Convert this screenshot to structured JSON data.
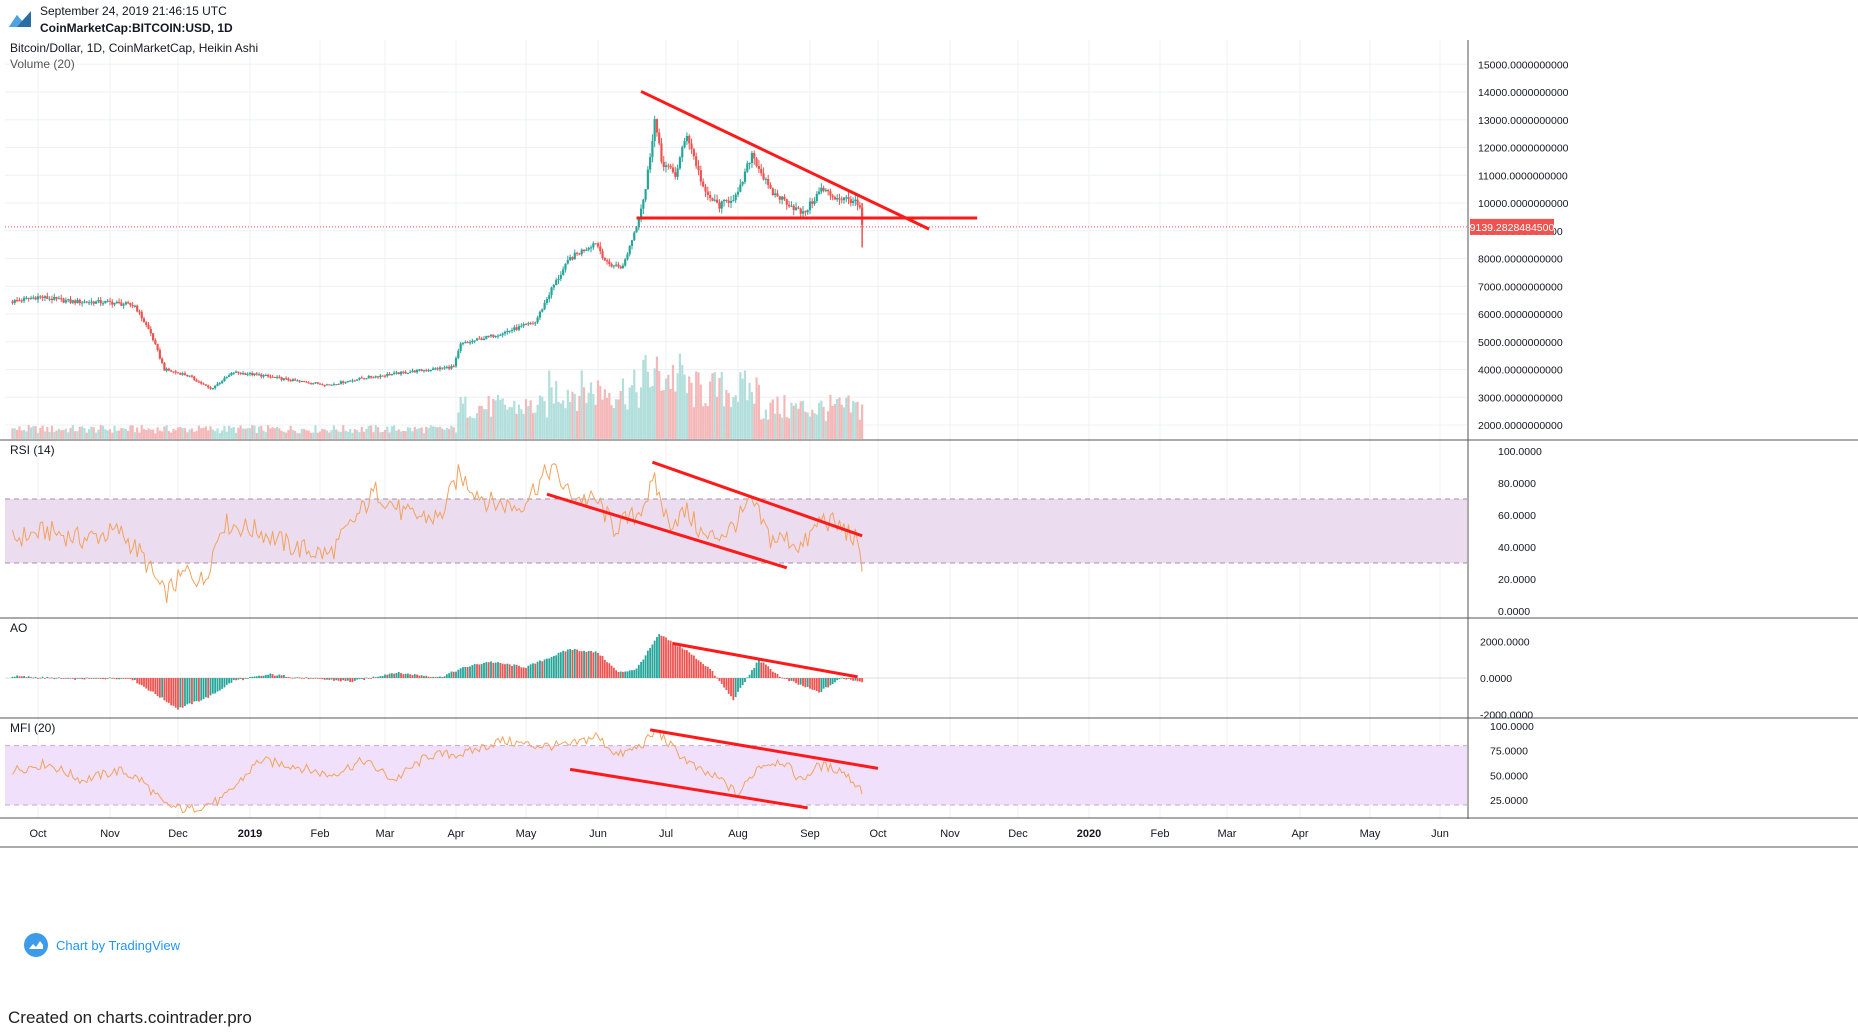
{
  "header": {
    "date": "September 24, 2019 21:46:15 UTC",
    "symbol": "CoinMarketCap:BITCOIN:USD, 1D"
  },
  "colors": {
    "up": "#26a69a",
    "down": "#ef5350",
    "vol_up": "#b2dfdb",
    "vol_down": "#f4b8b9",
    "osc_line": "#f2a35e",
    "trend": "#ff1a1a",
    "band_rsi": "#ecdcf0",
    "band_mfi": "#f1e0fb",
    "grid": "#eef0f3"
  },
  "main_pane": {
    "title": "Bitcoin/Dollar, 1D, CoinMarketCap, Heikin Ashi",
    "volume_label": "Volume (20)",
    "last_price": "9139.2828484500",
    "last_price_value": 9139.28,
    "y_ticks": [
      "15000.0000000000",
      "14000.0000000000",
      "13000.0000000000",
      "12000.0000000000",
      "11000.0000000000",
      "10000.0000000000",
      "9000.0000000000",
      "8000.0000000000",
      "7000.0000000000",
      "6000.0000000000",
      "5000.0000000000",
      "4000.0000000000",
      "3000.0000000000",
      "2000.0000000000"
    ]
  },
  "rsi_pane": {
    "title": "RSI (14)",
    "y_ticks": [
      "100.0000",
      "80.0000",
      "60.0000",
      "40.0000",
      "20.0000",
      "0.0000"
    ],
    "band": [
      30,
      70
    ]
  },
  "ao_pane": {
    "title": "AO",
    "y_ticks": [
      "2000.0000",
      "0.0000",
      "-2000.0000"
    ]
  },
  "mfi_pane": {
    "title": "MFI (20)",
    "y_ticks": [
      "100.0000",
      "75.0000",
      "50.0000",
      "25.0000"
    ],
    "band": [
      20,
      80
    ]
  },
  "x_axis": [
    "Oct",
    "Nov",
    "Dec",
    "2019",
    "Feb",
    "Mar",
    "Apr",
    "May",
    "Jun",
    "Jul",
    "Aug",
    "Sep",
    "Oct",
    "Nov",
    "Dec",
    "2020",
    "Feb",
    "Mar",
    "Apr",
    "May",
    "Jun"
  ],
  "chart_data": [
    {
      "type": "candlestick",
      "title": "Bitcoin/Dollar, 1D, CoinMarketCap, Heikin Ashi",
      "x_range": [
        "2018-09-20",
        "2020-06-20"
      ],
      "ylim": [
        1500,
        15800
      ],
      "close_path": [
        [
          "2018-09-20",
          6450
        ],
        [
          "2018-10-01",
          6620
        ],
        [
          "2018-10-15",
          6450
        ],
        [
          "2018-11-01",
          6420
        ],
        [
          "2018-11-12",
          6300
        ],
        [
          "2018-11-19",
          5300
        ],
        [
          "2018-11-25",
          4000
        ],
        [
          "2018-12-05",
          3800
        ],
        [
          "2018-12-15",
          3300
        ],
        [
          "2018-12-25",
          3900
        ],
        [
          "2019-01-05",
          3800
        ],
        [
          "2019-01-20",
          3600
        ],
        [
          "2019-02-05",
          3450
        ],
        [
          "2019-02-20",
          3700
        ],
        [
          "2019-03-10",
          3900
        ],
        [
          "2019-03-31",
          4100
        ],
        [
          "2019-04-03",
          4900
        ],
        [
          "2019-04-20",
          5300
        ],
        [
          "2019-05-05",
          5700
        ],
        [
          "2019-05-12",
          6900
        ],
        [
          "2019-05-20",
          8000
        ],
        [
          "2019-05-31",
          8600
        ],
        [
          "2019-06-05",
          7800
        ],
        [
          "2019-06-12",
          7700
        ],
        [
          "2019-06-18",
          9200
        ],
        [
          "2019-06-22",
          10500
        ],
        [
          "2019-06-26",
          13000
        ],
        [
          "2019-06-29",
          11500
        ],
        [
          "2019-07-05",
          11000
        ],
        [
          "2019-07-10",
          12500
        ],
        [
          "2019-07-18",
          10300
        ],
        [
          "2019-07-24",
          9900
        ],
        [
          "2019-08-01",
          10300
        ],
        [
          "2019-08-07",
          11800
        ],
        [
          "2019-08-15",
          10400
        ],
        [
          "2019-08-21",
          10100
        ],
        [
          "2019-08-29",
          9600
        ],
        [
          "2019-09-06",
          10500
        ],
        [
          "2019-09-12",
          10200
        ],
        [
          "2019-09-20",
          10100
        ],
        [
          "2019-09-23",
          9800
        ],
        [
          "2019-09-24",
          9139
        ]
      ],
      "volume_range": [
        1500,
        5000
      ]
    },
    {
      "type": "line",
      "title": "RSI (14)",
      "ylim": [
        0,
        100
      ],
      "points": [
        [
          "2018-09-20",
          45
        ],
        [
          "2018-10-05",
          50
        ],
        [
          "2018-10-20",
          45
        ],
        [
          "2018-11-05",
          50
        ],
        [
          "2018-11-15",
          35
        ],
        [
          "2018-11-25",
          10
        ],
        [
          "2018-12-05",
          25
        ],
        [
          "2018-12-12",
          18
        ],
        [
          "2018-12-20",
          55
        ],
        [
          "2019-01-05",
          50
        ],
        [
          "2019-01-20",
          40
        ],
        [
          "2019-02-05",
          35
        ],
        [
          "2019-02-15",
          55
        ],
        [
          "2019-02-25",
          75
        ],
        [
          "2019-03-10",
          60
        ],
        [
          "2019-03-25",
          58
        ],
        [
          "2019-04-02",
          85
        ],
        [
          "2019-04-15",
          68
        ],
        [
          "2019-04-28",
          65
        ],
        [
          "2019-05-12",
          90
        ],
        [
          "2019-05-20",
          72
        ],
        [
          "2019-06-01",
          68
        ],
        [
          "2019-06-08",
          52
        ],
        [
          "2019-06-18",
          60
        ],
        [
          "2019-06-26",
          80
        ],
        [
          "2019-07-02",
          55
        ],
        [
          "2019-07-10",
          62
        ],
        [
          "2019-07-18",
          45
        ],
        [
          "2019-07-28",
          50
        ],
        [
          "2019-08-07",
          68
        ],
        [
          "2019-08-15",
          45
        ],
        [
          "2019-08-22",
          45
        ],
        [
          "2019-08-29",
          40
        ],
        [
          "2019-09-06",
          58
        ],
        [
          "2019-09-15",
          52
        ],
        [
          "2019-09-21",
          45
        ],
        [
          "2019-09-24",
          25
        ]
      ]
    },
    {
      "type": "bar",
      "title": "AO",
      "ylim": [
        -2300,
        2700
      ],
      "points": [
        [
          "2018-09-20",
          100
        ],
        [
          "2018-10-15",
          -50
        ],
        [
          "2018-11-10",
          0
        ],
        [
          "2018-11-20",
          -800
        ],
        [
          "2018-12-01",
          -1700
        ],
        [
          "2018-12-15",
          -1000
        ],
        [
          "2018-12-25",
          -150
        ],
        [
          "2019-01-10",
          200
        ],
        [
          "2019-01-25",
          0
        ],
        [
          "2019-02-15",
          -200
        ],
        [
          "2019-03-05",
          300
        ],
        [
          "2019-03-25",
          50
        ],
        [
          "2019-04-05",
          600
        ],
        [
          "2019-04-15",
          900
        ],
        [
          "2019-05-01",
          600
        ],
        [
          "2019-05-20",
          1600
        ],
        [
          "2019-06-01",
          1400
        ],
        [
          "2019-06-10",
          300
        ],
        [
          "2019-06-18",
          500
        ],
        [
          "2019-06-28",
          2400
        ],
        [
          "2019-07-10",
          1500
        ],
        [
          "2019-07-20",
          500
        ],
        [
          "2019-07-30",
          -1200
        ],
        [
          "2019-08-10",
          1000
        ],
        [
          "2019-08-20",
          0
        ],
        [
          "2019-09-05",
          -800
        ],
        [
          "2019-09-15",
          0
        ],
        [
          "2019-09-24",
          -200
        ]
      ]
    },
    {
      "type": "line",
      "title": "MFI (20)",
      "ylim": [
        10,
        105
      ],
      "points": [
        [
          "2018-09-20",
          55
        ],
        [
          "2018-10-05",
          62
        ],
        [
          "2018-10-20",
          45
        ],
        [
          "2018-11-05",
          55
        ],
        [
          "2018-11-15",
          45
        ],
        [
          "2018-11-25",
          20
        ],
        [
          "2018-12-05",
          15
        ],
        [
          "2018-12-20",
          25
        ],
        [
          "2019-01-05",
          65
        ],
        [
          "2019-01-20",
          60
        ],
        [
          "2019-02-05",
          50
        ],
        [
          "2019-02-20",
          65
        ],
        [
          "2019-03-05",
          45
        ],
        [
          "2019-03-20",
          70
        ],
        [
          "2019-04-05",
          72
        ],
        [
          "2019-04-20",
          85
        ],
        [
          "2019-05-05",
          80
        ],
        [
          "2019-05-20",
          80
        ],
        [
          "2019-05-31",
          90
        ],
        [
          "2019-06-10",
          70
        ],
        [
          "2019-06-20",
          80
        ],
        [
          "2019-06-27",
          95
        ],
        [
          "2019-07-05",
          75
        ],
        [
          "2019-07-15",
          55
        ],
        [
          "2019-07-25",
          45
        ],
        [
          "2019-08-01",
          30
        ],
        [
          "2019-08-10",
          60
        ],
        [
          "2019-08-20",
          65
        ],
        [
          "2019-08-28",
          45
        ],
        [
          "2019-09-05",
          60
        ],
        [
          "2019-09-15",
          55
        ],
        [
          "2019-09-24",
          35
        ]
      ]
    }
  ],
  "attribution": "Chart by TradingView",
  "footer": "Created on charts.cointrader.pro"
}
